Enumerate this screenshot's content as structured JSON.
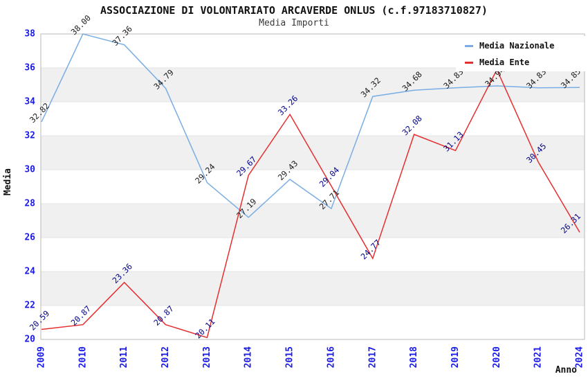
{
  "title": "ASSOCIAZIONE DI VOLONTARIATO ARCAVERDE ONLUS (c.f.97183710827)",
  "subtitle": "Media Importi",
  "chart_data": {
    "type": "line",
    "title": "ASSOCIAZIONE DI VOLONTARIATO ARCAVERDE ONLUS (c.f.97183710827)",
    "subtitle": "Media Importi",
    "xlabel": "Anno",
    "ylabel": "Media",
    "x": [
      "2009",
      "2010",
      "2011",
      "2012",
      "2013",
      "2014",
      "2015",
      "2016",
      "2017",
      "2018",
      "2019",
      "2020",
      "2021",
      "2024"
    ],
    "ylim": [
      20,
      38
    ],
    "yticks": [
      20,
      22,
      24,
      26,
      28,
      30,
      32,
      34,
      36,
      38
    ],
    "grid": "horizontal-bands",
    "legend_position": "top-right",
    "band_colors": [
      "#ffffff",
      "#f0f0f0"
    ],
    "gridline_color": "#e3e3e3",
    "plot_border_color": "#b8b8b8",
    "axis_tick_color": "#1a1ae6",
    "series": [
      {
        "name": "Media Nazionale",
        "color": "#79ade3",
        "label_color": "#1a1a1a",
        "values": [
          32.82,
          38.0,
          37.36,
          34.79,
          29.24,
          27.19,
          29.43,
          27.71,
          34.32,
          34.68,
          34.83,
          34.94,
          34.83,
          34.85
        ],
        "labels": [
          "32.82",
          "38.00",
          "37.36",
          "34.79",
          "29.24",
          "27.19",
          "29.43",
          "27.71",
          "34.32",
          "34.68",
          "34.83",
          "34.94",
          "34.83",
          "34.85"
        ]
      },
      {
        "name": "Media Ente",
        "color": "#e62e2e",
        "label_color": "#00008b",
        "values": [
          20.59,
          20.87,
          23.36,
          20.87,
          20.11,
          29.67,
          33.26,
          29.04,
          24.77,
          32.08,
          31.13,
          35.9,
          30.45,
          26.31
        ],
        "labels": [
          "20.59",
          "20.87",
          "23.36",
          "20.87",
          "20.11",
          "29.67",
          "33.26",
          "29.04",
          "24.77",
          "32.08",
          "31.13",
          "",
          "30.45",
          "26.31"
        ]
      }
    ]
  }
}
